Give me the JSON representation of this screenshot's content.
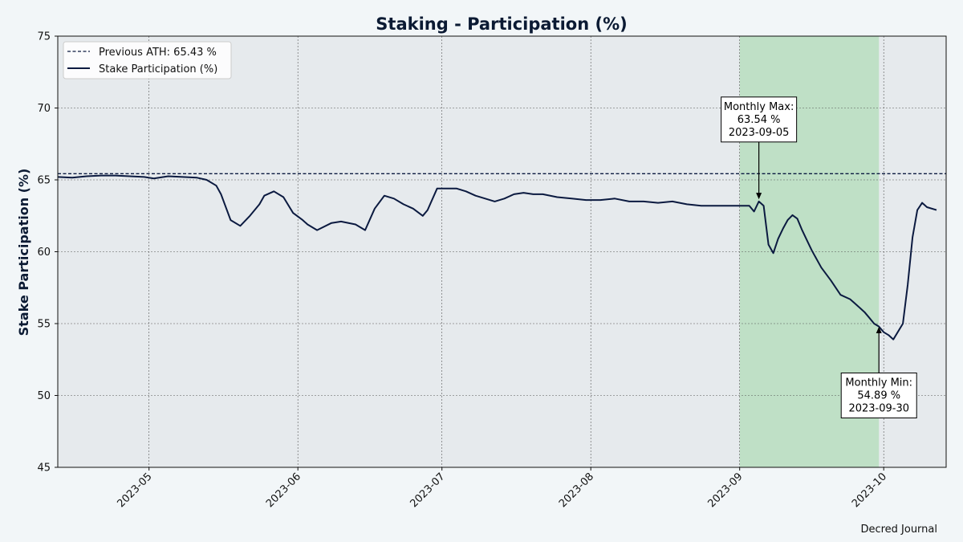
{
  "chart_data": {
    "type": "line",
    "title": "Staking - Participation (%)",
    "xlabel": "",
    "ylabel": "Stake Participation (%)",
    "ylim": [
      45,
      75
    ],
    "xlim": [
      "2023-04-12",
      "2023-10-14"
    ],
    "yticks": [
      45,
      50,
      55,
      60,
      65,
      70,
      75
    ],
    "xticks": [
      "2023-05",
      "2023-06",
      "2023-07",
      "2023-08",
      "2023-09",
      "2023-10"
    ],
    "grid": true,
    "legend_position": "top-left",
    "highlight_span": {
      "start": "2023-09-01",
      "end": "2023-09-30",
      "color": "#bfe0c6"
    },
    "reference_line": {
      "label": "Previous ATH: 65.43 %",
      "value": 65.43,
      "style": "dashed",
      "color": "#0b1a40"
    },
    "series": [
      {
        "name": "Stake Participation (%)",
        "color": "#0b1a40",
        "x": [
          "2023-04-12",
          "2023-04-15",
          "2023-04-18",
          "2023-04-21",
          "2023-04-24",
          "2023-04-27",
          "2023-04-30",
          "2023-05-02",
          "2023-05-05",
          "2023-05-08",
          "2023-05-11",
          "2023-05-13",
          "2023-05-15",
          "2023-05-16",
          "2023-05-18",
          "2023-05-20",
          "2023-05-22",
          "2023-05-24",
          "2023-05-25",
          "2023-05-27",
          "2023-05-29",
          "2023-05-31",
          "2023-06-02",
          "2023-06-03",
          "2023-06-05",
          "2023-06-08",
          "2023-06-10",
          "2023-06-13",
          "2023-06-15",
          "2023-06-17",
          "2023-06-19",
          "2023-06-21",
          "2023-06-23",
          "2023-06-25",
          "2023-06-27",
          "2023-06-28",
          "2023-06-30",
          "2023-07-02",
          "2023-07-04",
          "2023-07-06",
          "2023-07-08",
          "2023-07-10",
          "2023-07-12",
          "2023-07-14",
          "2023-07-16",
          "2023-07-18",
          "2023-07-20",
          "2023-07-22",
          "2023-07-25",
          "2023-07-28",
          "2023-07-31",
          "2023-08-03",
          "2023-08-06",
          "2023-08-09",
          "2023-08-12",
          "2023-08-15",
          "2023-08-18",
          "2023-08-21",
          "2023-08-24",
          "2023-08-27",
          "2023-08-30",
          "2023-09-01",
          "2023-09-03",
          "2023-09-04",
          "2023-09-05",
          "2023-09-06",
          "2023-09-07",
          "2023-09-08",
          "2023-09-09",
          "2023-09-10",
          "2023-09-11",
          "2023-09-12",
          "2023-09-13",
          "2023-09-14",
          "2023-09-15",
          "2023-09-16",
          "2023-09-18",
          "2023-09-20",
          "2023-09-22",
          "2023-09-24",
          "2023-09-25",
          "2023-09-26",
          "2023-09-27",
          "2023-09-28",
          "2023-09-29",
          "2023-09-30",
          "2023-10-01",
          "2023-10-02",
          "2023-10-03",
          "2023-10-05",
          "2023-10-06",
          "2023-10-07",
          "2023-10-08",
          "2023-10-09",
          "2023-10-10",
          "2023-10-12"
        ],
        "values": [
          65.2,
          65.15,
          65.25,
          65.3,
          65.3,
          65.25,
          65.2,
          65.1,
          65.25,
          65.2,
          65.15,
          65.0,
          64.6,
          64.0,
          62.2,
          61.8,
          62.5,
          63.3,
          63.9,
          64.2,
          63.8,
          62.7,
          62.2,
          61.9,
          61.5,
          62.0,
          62.1,
          61.9,
          61.5,
          63.0,
          63.9,
          63.7,
          63.3,
          63.0,
          62.5,
          62.9,
          64.4,
          64.4,
          64.4,
          64.2,
          63.9,
          63.7,
          63.5,
          63.7,
          64.0,
          64.1,
          64.0,
          64.0,
          63.8,
          63.7,
          63.6,
          63.6,
          63.7,
          63.5,
          63.5,
          63.4,
          63.5,
          63.3,
          63.2,
          63.2,
          63.2,
          63.2,
          63.2,
          62.8,
          63.5,
          63.2,
          60.5,
          59.9,
          60.9,
          61.6,
          62.2,
          62.55,
          62.3,
          61.5,
          60.8,
          60.1,
          58.9,
          58.0,
          57.0,
          56.7,
          56.4,
          56.1,
          55.8,
          55.4,
          55.0,
          54.8,
          54.4,
          54.2,
          53.9,
          55.0,
          57.7,
          61.0,
          62.9,
          63.4,
          63.1,
          62.9
        ]
      }
    ],
    "annotations": [
      {
        "text_lines": [
          "Monthly Max:",
          "63.54 %",
          "2023-09-05"
        ],
        "x": "2023-09-05",
        "y": 63.54,
        "text_y": 69.2
      },
      {
        "text_lines": [
          "Monthly Min:",
          "54.89 %",
          "2023-09-30"
        ],
        "x": "2023-09-30",
        "y": 54.89,
        "text_y": 50.0
      }
    ],
    "footer": "Decred Journal"
  }
}
